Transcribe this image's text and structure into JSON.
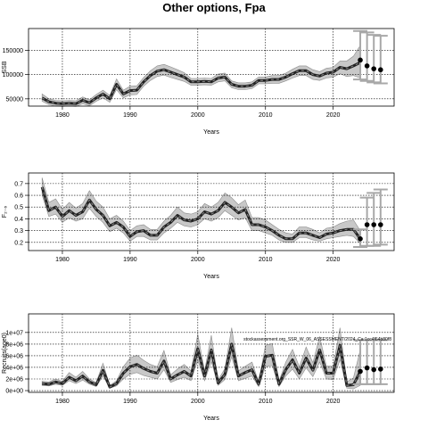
{
  "figure": {
    "title": "Other options, Fpa"
  },
  "colors": {
    "band": "#c8c8c8",
    "band_edge": "#8c8c8c",
    "line": "#222222",
    "center_dash": "#8a8a8a",
    "grid": "#000000",
    "forecast_bar": "#a8a8a8",
    "point": "#000000"
  },
  "chart_data": [
    {
      "type": "line",
      "ylabel": "SSB",
      "xlabel": "Years",
      "xlim": [
        1975,
        2029
      ],
      "ylim": [
        35000,
        195000
      ],
      "xticks": [
        1980,
        1990,
        2000,
        2010,
        2020
      ],
      "xtick_labels": [
        "1980",
        "1990",
        "2000",
        "2010",
        "2020"
      ],
      "yticks": [
        50000,
        100000,
        150000
      ],
      "ytick_labels": [
        "50000",
        "100000",
        "150000"
      ],
      "grid": true,
      "series": [
        {
          "x": [
            1977,
            1978,
            1979,
            1980,
            1981,
            1982,
            1983,
            1984,
            1985,
            1986,
            1987,
            1988,
            1989,
            1990,
            1991,
            1992,
            1993,
            1994,
            1995,
            1996,
            1997,
            1998,
            1999,
            2000,
            2001,
            2002,
            2003,
            2004,
            2005,
            2006,
            2007,
            2008,
            2009,
            2010,
            2011,
            2012,
            2013,
            2014,
            2015,
            2016,
            2017,
            2018,
            2019,
            2020,
            2021,
            2022,
            2023,
            2024
          ],
          "y": [
            52000,
            44000,
            41000,
            40000,
            41000,
            40000,
            47000,
            42000,
            52000,
            60000,
            50000,
            80000,
            60000,
            67000,
            68000,
            85000,
            98000,
            107000,
            110000,
            105000,
            100000,
            95000,
            85000,
            85000,
            86000,
            85000,
            93000,
            95000,
            80000,
            76000,
            76000,
            78000,
            88000,
            88000,
            90000,
            90000,
            95000,
            102000,
            108000,
            108000,
            100000,
            97000,
            103000,
            105000,
            115000,
            112000,
            118000,
            125000
          ],
          "lower": [
            45000,
            38000,
            35000,
            34000,
            35000,
            34000,
            40000,
            36000,
            45000,
            52000,
            43000,
            69000,
            52000,
            58000,
            59000,
            76000,
            88000,
            96000,
            99000,
            94000,
            90000,
            86000,
            78000,
            78000,
            79000,
            78000,
            85000,
            87000,
            73000,
            69000,
            69000,
            71000,
            81000,
            81000,
            82000,
            82000,
            87000,
            93000,
            98000,
            98000,
            90000,
            88000,
            93000,
            95000,
            102000,
            96000,
            98000,
            93000
          ],
          "upper": [
            60000,
            50000,
            47000,
            46000,
            47000,
            46000,
            54000,
            48000,
            59000,
            68000,
            57000,
            91000,
            68000,
            76000,
            77000,
            94000,
            108000,
            118000,
            121000,
            116000,
            110000,
            104000,
            92000,
            92000,
            93000,
            92000,
            101000,
            103000,
            87000,
            83000,
            83000,
            85000,
            95000,
            95000,
            98000,
            98000,
            103000,
            111000,
            118000,
            118000,
            110000,
            106000,
            113000,
            115000,
            128000,
            128000,
            138000,
            160000
          ]
        }
      ],
      "forecast": {
        "x": [
          2024,
          2025,
          2026,
          2027
        ],
        "y": [
          130000,
          118000,
          112000,
          110000
        ],
        "lower": [
          90000,
          87000,
          84000,
          82000
        ],
        "upper": [
          190000,
          187000,
          182000,
          180000
        ]
      }
    },
    {
      "type": "line",
      "ylabel": "F₂₋₆",
      "xlabel": "Years",
      "xlim": [
        1975,
        2029
      ],
      "ylim": [
        0.13,
        0.79
      ],
      "xticks": [
        1980,
        1990,
        2000,
        2010,
        2020
      ],
      "xtick_labels": [
        "1980",
        "1990",
        "2000",
        "2010",
        "2020"
      ],
      "yticks": [
        0.2,
        0.3,
        0.4,
        0.5,
        0.6,
        0.7
      ],
      "ytick_labels": [
        "0.2",
        "0.3",
        "0.4",
        "0.5",
        "0.6",
        "0.7"
      ],
      "grid": true,
      "series": [
        {
          "x": [
            1977,
            1978,
            1979,
            1980,
            1981,
            1982,
            1983,
            1984,
            1985,
            1986,
            1987,
            1988,
            1989,
            1990,
            1991,
            1992,
            1993,
            1994,
            1995,
            1996,
            1997,
            1998,
            1999,
            2000,
            2001,
            2002,
            2003,
            2004,
            2005,
            2006,
            2007,
            2008,
            2009,
            2010,
            2011,
            2012,
            2013,
            2014,
            2015,
            2016,
            2017,
            2018,
            2019,
            2020,
            2021,
            2022,
            2023,
            2024
          ],
          "y": [
            0.67,
            0.47,
            0.5,
            0.42,
            0.47,
            0.43,
            0.46,
            0.56,
            0.48,
            0.43,
            0.34,
            0.37,
            0.33,
            0.25,
            0.29,
            0.3,
            0.26,
            0.26,
            0.33,
            0.37,
            0.43,
            0.39,
            0.38,
            0.4,
            0.46,
            0.44,
            0.47,
            0.54,
            0.5,
            0.45,
            0.48,
            0.35,
            0.35,
            0.33,
            0.3,
            0.26,
            0.23,
            0.23,
            0.28,
            0.28,
            0.26,
            0.24,
            0.27,
            0.28,
            0.3,
            0.31,
            0.31,
            0.23
          ],
          "lower": [
            0.6,
            0.42,
            0.44,
            0.37,
            0.41,
            0.38,
            0.4,
            0.49,
            0.42,
            0.37,
            0.29,
            0.32,
            0.28,
            0.21,
            0.25,
            0.25,
            0.22,
            0.22,
            0.28,
            0.32,
            0.37,
            0.34,
            0.33,
            0.35,
            0.4,
            0.38,
            0.41,
            0.47,
            0.43,
            0.39,
            0.41,
            0.3,
            0.3,
            0.28,
            0.26,
            0.22,
            0.2,
            0.2,
            0.24,
            0.24,
            0.22,
            0.21,
            0.23,
            0.24,
            0.25,
            0.26,
            0.25,
            0.19
          ],
          "upper": [
            0.75,
            0.54,
            0.57,
            0.48,
            0.54,
            0.49,
            0.53,
            0.64,
            0.55,
            0.5,
            0.4,
            0.43,
            0.38,
            0.3,
            0.34,
            0.35,
            0.31,
            0.31,
            0.38,
            0.43,
            0.5,
            0.45,
            0.44,
            0.46,
            0.53,
            0.5,
            0.54,
            0.62,
            0.58,
            0.52,
            0.56,
            0.41,
            0.41,
            0.39,
            0.35,
            0.31,
            0.28,
            0.27,
            0.33,
            0.33,
            0.31,
            0.28,
            0.32,
            0.33,
            0.36,
            0.38,
            0.39,
            0.3
          ]
        }
      ],
      "forecast": {
        "x": [
          2024,
          2025,
          2026,
          2027
        ],
        "y": [
          0.23,
          0.35,
          0.35,
          0.35
        ],
        "lower": [
          0.16,
          0.17,
          0.17,
          0.18
        ],
        "upper": [
          0.31,
          0.58,
          0.62,
          0.65
        ]
      }
    },
    {
      "type": "line",
      "ylabel": "Recruits(age0)",
      "xlabel": "Years",
      "xlim": [
        1975,
        2029
      ],
      "ylim": [
        -300000,
        13200000
      ],
      "xticks": [
        1980,
        1990,
        2000,
        2010,
        2020
      ],
      "xtick_labels": [
        "1980",
        "1990",
        "2000",
        "2010",
        "2020"
      ],
      "yticks": [
        0,
        2000000,
        4000000,
        6000000,
        8000000,
        10000000
      ],
      "ytick_labels": [
        "0e+00",
        "2e+06",
        "4e+06",
        "6e+06",
        "8e+06",
        "1e+07"
      ],
      "grid": true,
      "annotation": "stockassessment.org_SSR_W_06_ASSESSMENT/2024_Ca:1cc4f64b80f8",
      "series": [
        {
          "x": [
            1977,
            1978,
            1979,
            1980,
            1981,
            1982,
            1983,
            1984,
            1985,
            1986,
            1987,
            1988,
            1989,
            1990,
            1991,
            1992,
            1993,
            1994,
            1995,
            1996,
            1997,
            1998,
            1999,
            2000,
            2001,
            2002,
            2003,
            2004,
            2005,
            2006,
            2007,
            2008,
            2009,
            2010,
            2011,
            2012,
            2013,
            2014,
            2015,
            2016,
            2017,
            2018,
            2019,
            2020,
            2021,
            2022,
            2023,
            2024
          ],
          "y": [
            1200000,
            1100000,
            1500000,
            1200000,
            2300000,
            1700000,
            2500000,
            1500000,
            1000000,
            3500000,
            600000,
            1200000,
            3000000,
            4100000,
            4500000,
            3800000,
            3300000,
            3000000,
            5100000,
            2000000,
            2700000,
            3300000,
            2500000,
            7200000,
            2500000,
            7000000,
            1300000,
            2800000,
            8000000,
            2500000,
            3100000,
            3600000,
            1100000,
            5900000,
            6100000,
            1100000,
            3600000,
            5300000,
            3000000,
            5600000,
            3500000,
            7000000,
            3000000,
            3000000,
            7800000,
            900000,
            1000000,
            3300000
          ],
          "lower": [
            900000,
            800000,
            1100000,
            900000,
            1700000,
            1200000,
            1800000,
            1100000,
            700000,
            2500000,
            400000,
            800000,
            2000000,
            2800000,
            3100000,
            2600000,
            2300000,
            2000000,
            3600000,
            1400000,
            1900000,
            2300000,
            1700000,
            5200000,
            1700000,
            5000000,
            900000,
            1900000,
            5800000,
            1700000,
            2100000,
            2500000,
            700000,
            4100000,
            4300000,
            700000,
            2500000,
            3700000,
            2000000,
            3900000,
            2400000,
            4900000,
            2000000,
            1900000,
            5300000,
            400000,
            300000,
            900000
          ],
          "upper": [
            1600000,
            1500000,
            2000000,
            1600000,
            3100000,
            2300000,
            3300000,
            2000000,
            1400000,
            4700000,
            900000,
            1700000,
            4100000,
            5600000,
            6100000,
            5200000,
            4500000,
            4100000,
            6900000,
            2700000,
            3700000,
            4500000,
            3400000,
            9700000,
            3400000,
            9500000,
            1800000,
            3800000,
            10800000,
            3400000,
            4200000,
            4900000,
            1500000,
            7800000,
            8100000,
            1600000,
            4900000,
            7100000,
            4100000,
            7500000,
            4800000,
            9300000,
            4200000,
            4200000,
            10800000,
            1500000,
            2200000,
            7000000
          ]
        }
      ],
      "forecast": {
        "x": [
          2024,
          2025,
          2026,
          2027
        ],
        "y": [
          3300000,
          3900000,
          3600000,
          3700000
        ],
        "lower": [
          1100000,
          1100000,
          1100000,
          1100000
        ],
        "upper": [
          8700000,
          8700000,
          8700000,
          8700000
        ]
      }
    }
  ]
}
